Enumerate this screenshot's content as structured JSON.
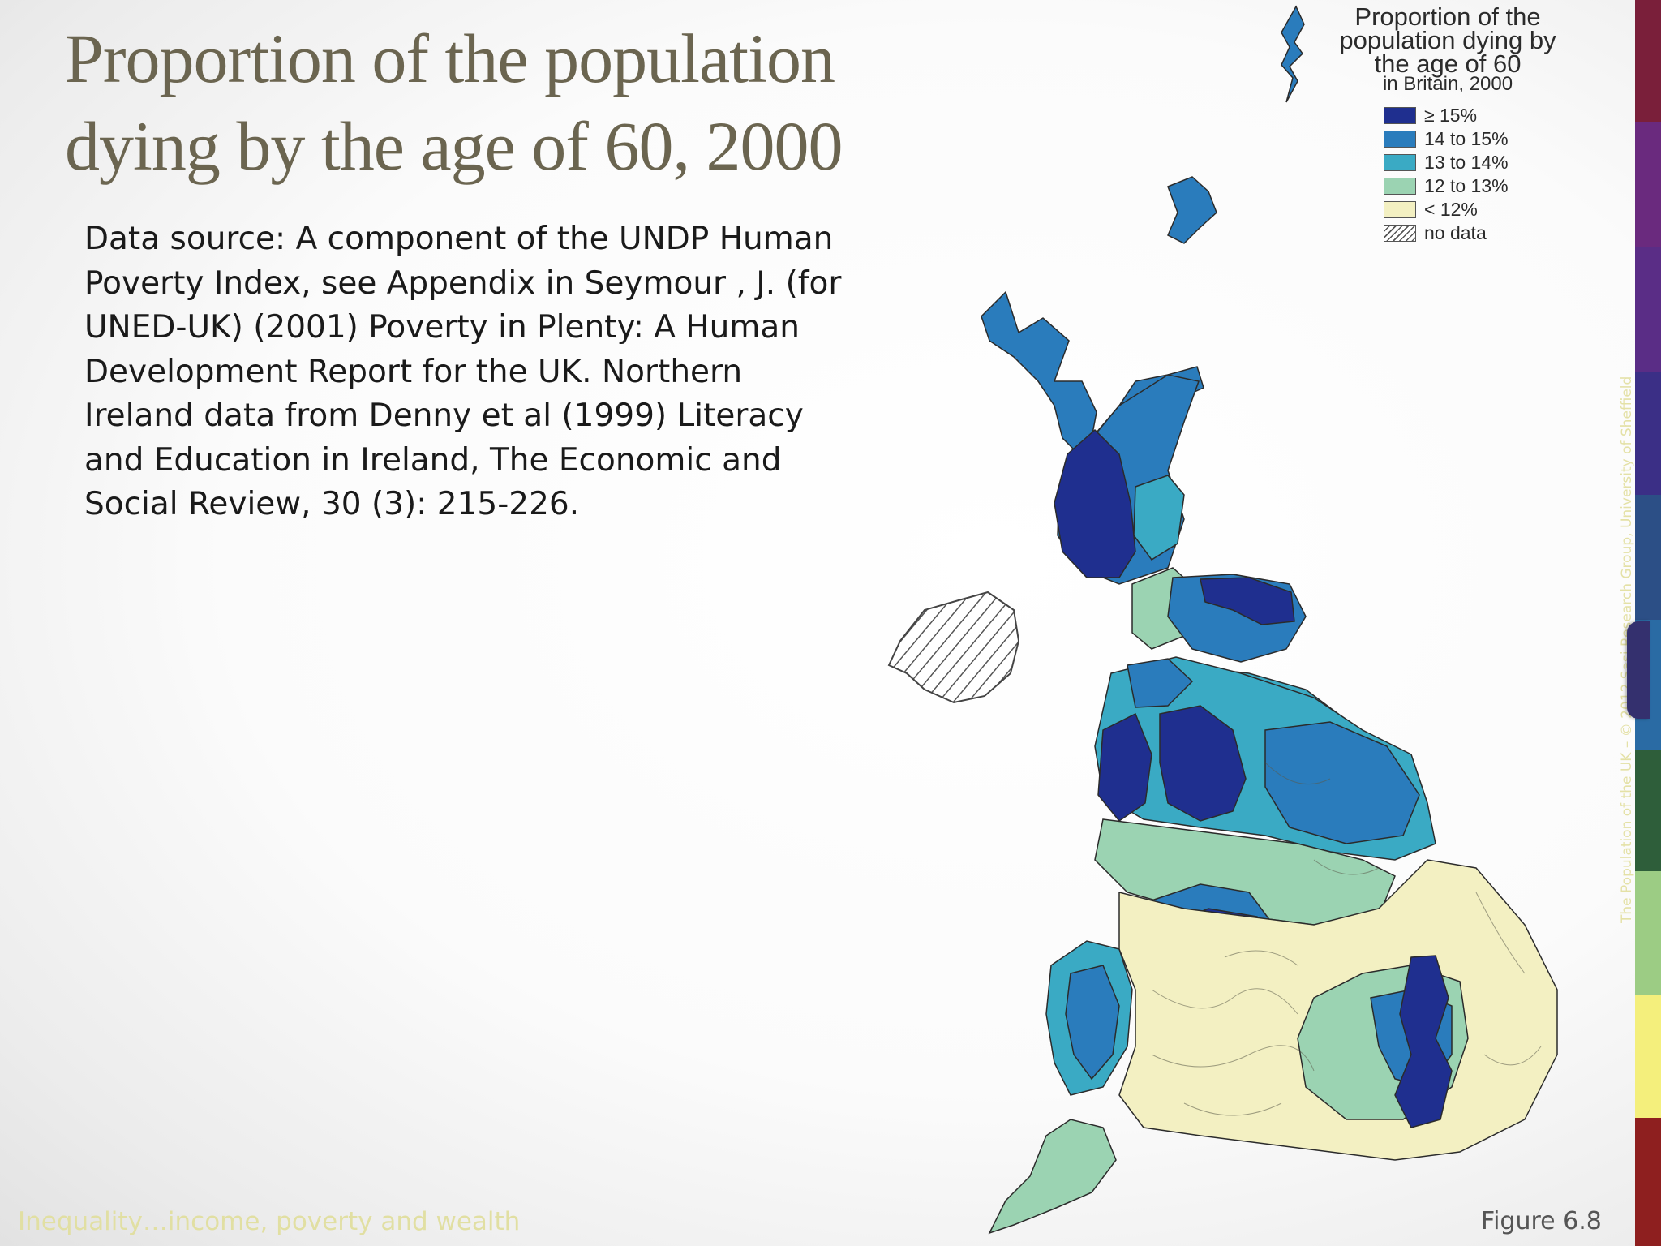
{
  "slide": {
    "title_lines": [
      "Proportion of the population",
      "dying by the age of 60, 2000"
    ],
    "source_lines": [
      "Data source: A component of the UNDP Human",
      "Poverty Index, see Appendix in Seymour , J. (for",
      "UNED-UK) (2001) Poverty in Plenty: A Human",
      "Development Report for the UK. Northern",
      "Ireland data from Denny et al (1999) Literacy",
      "and Education in Ireland, The Economic and",
      "Social Review, 30 (3): 215-226."
    ],
    "footer_left": "Inequality…income, poverty and wealth",
    "figure_label": "Figure 6.8",
    "vertical_credit": "The Population of the UK – © 2012  Sasi Research Group, University of Sheffield"
  },
  "legend": {
    "title_lines": [
      "Proportion of the",
      "population dying by",
      "the age of 60"
    ],
    "subtitle": "in Britain, 2000",
    "items": [
      {
        "label": "≥ 15%",
        "color": "#1f2f8f"
      },
      {
        "label": "14 to 15%",
        "color": "#2a7cbc"
      },
      {
        "label": "13 to 14%",
        "color": "#3aaac4"
      },
      {
        "label": "12 to 13%",
        "color": "#9bd3b2"
      },
      {
        "label": "< 12%",
        "color": "#f3f0c2"
      },
      {
        "label": "no data",
        "color": "hatch"
      }
    ]
  },
  "colors": {
    "title": "#6b6550",
    "footer": "#e1dfa2",
    "strip": [
      "#7a1f3a",
      "#6a2a7e",
      "#5a2d86",
      "#3b2f86",
      "#2c4f86",
      "#2a6ba4",
      "#2e5e3a",
      "#9ccc84",
      "#f4ef7c",
      "#8e1f1f"
    ]
  },
  "map_regions": [
    {
      "name": "northern-ireland",
      "class": "no data"
    },
    {
      "name": "scotland-highlands",
      "class": "14 to 15%"
    },
    {
      "name": "scotland-west-glasgow",
      "class": "≥ 15%"
    },
    {
      "name": "scotland-east",
      "class": "14 to 15%"
    },
    {
      "name": "scotland-central",
      "class": "13 to 14%"
    },
    {
      "name": "scotland-edinburgh",
      "class": "≥ 15%"
    },
    {
      "name": "north-east-england",
      "class": "14 to 15%"
    },
    {
      "name": "north-west-manchester",
      "class": "≥ 15%"
    },
    {
      "name": "merseyside",
      "class": "14 to 15%"
    },
    {
      "name": "yorkshire",
      "class": "13 to 14%"
    },
    {
      "name": "west-midlands-birmingham",
      "class": "≥ 15%"
    },
    {
      "name": "wales",
      "class": "13 to 14%"
    },
    {
      "name": "south-wales",
      "class": "12 to 13%"
    },
    {
      "name": "inner-london",
      "class": "≥ 15%"
    },
    {
      "name": "outer-london",
      "class": "14 to 15%"
    },
    {
      "name": "south-england",
      "class": "< 12%"
    },
    {
      "name": "south-west-peninsula",
      "class": "12 to 13%"
    }
  ]
}
